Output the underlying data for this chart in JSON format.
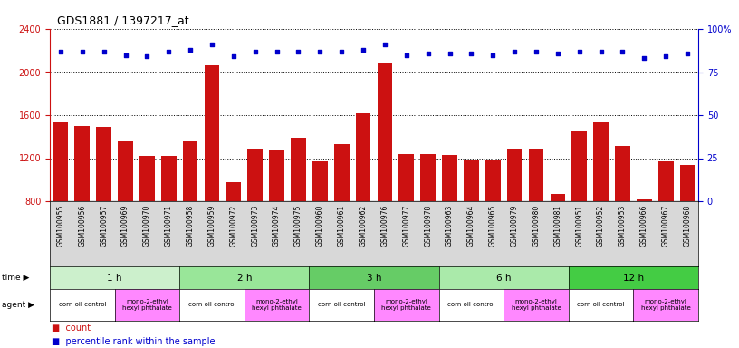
{
  "title": "GDS1881 / 1397217_at",
  "samples": [
    "GSM100955",
    "GSM100956",
    "GSM100957",
    "GSM100969",
    "GSM100970",
    "GSM100971",
    "GSM100958",
    "GSM100959",
    "GSM100972",
    "GSM100973",
    "GSM100974",
    "GSM100975",
    "GSM100960",
    "GSM100961",
    "GSM100962",
    "GSM100976",
    "GSM100977",
    "GSM100978",
    "GSM100963",
    "GSM100964",
    "GSM100965",
    "GSM100979",
    "GSM100980",
    "GSM100981",
    "GSM100951",
    "GSM100952",
    "GSM100953",
    "GSM100966",
    "GSM100967",
    "GSM100968"
  ],
  "counts": [
    1530,
    1500,
    1490,
    1360,
    1220,
    1220,
    1360,
    2060,
    980,
    1290,
    1270,
    1390,
    1170,
    1330,
    1620,
    2080,
    1240,
    1240,
    1230,
    1190,
    1180,
    1290,
    1290,
    870,
    1460,
    1530,
    1310,
    820,
    1170,
    1140
  ],
  "percentiles": [
    87,
    87,
    87,
    85,
    84,
    87,
    88,
    91,
    84,
    87,
    87,
    87,
    87,
    87,
    88,
    91,
    85,
    86,
    86,
    86,
    85,
    87,
    87,
    86,
    87,
    87,
    87,
    83,
    84,
    86
  ],
  "time_groups": [
    {
      "label": "1 h",
      "start": 0,
      "end": 6,
      "color": "#ccf0cc"
    },
    {
      "label": "2 h",
      "start": 6,
      "end": 12,
      "color": "#99e699"
    },
    {
      "label": "3 h",
      "start": 12,
      "end": 18,
      "color": "#66cc66"
    },
    {
      "label": "6 h",
      "start": 18,
      "end": 24,
      "color": "#aaeaaa"
    },
    {
      "label": "12 h",
      "start": 24,
      "end": 30,
      "color": "#44cc44"
    }
  ],
  "agent_groups": [
    {
      "label": "corn oil control",
      "start": 0,
      "end": 3,
      "color": "#ffffff"
    },
    {
      "label": "mono-2-ethyl\nhexyl phthalate",
      "start": 3,
      "end": 6,
      "color": "#ff88ff"
    },
    {
      "label": "corn oil control",
      "start": 6,
      "end": 9,
      "color": "#ffffff"
    },
    {
      "label": "mono-2-ethyl\nhexyl phthalate",
      "start": 9,
      "end": 12,
      "color": "#ff88ff"
    },
    {
      "label": "corn oil control",
      "start": 12,
      "end": 15,
      "color": "#ffffff"
    },
    {
      "label": "mono-2-ethyl\nhexyl phthalate",
      "start": 15,
      "end": 18,
      "color": "#ff88ff"
    },
    {
      "label": "corn oil control",
      "start": 18,
      "end": 21,
      "color": "#ffffff"
    },
    {
      "label": "mono-2-ethyl\nhexyl phthalate",
      "start": 21,
      "end": 24,
      "color": "#ff88ff"
    },
    {
      "label": "corn oil control",
      "start": 24,
      "end": 27,
      "color": "#ffffff"
    },
    {
      "label": "mono-2-ethyl\nhexyl phthalate",
      "start": 27,
      "end": 30,
      "color": "#ff88ff"
    }
  ],
  "bar_color": "#cc1111",
  "dot_color": "#0000cc",
  "ylim_left": [
    800,
    2400
  ],
  "ylim_right": [
    0,
    100
  ],
  "yticks_left": [
    800,
    1200,
    1600,
    2000,
    2400
  ],
  "yticks_right": [
    0,
    25,
    50,
    75,
    100
  ],
  "xtick_bg": "#d8d8d8",
  "plot_bg": "#ffffff",
  "fig_bg": "#ffffff"
}
